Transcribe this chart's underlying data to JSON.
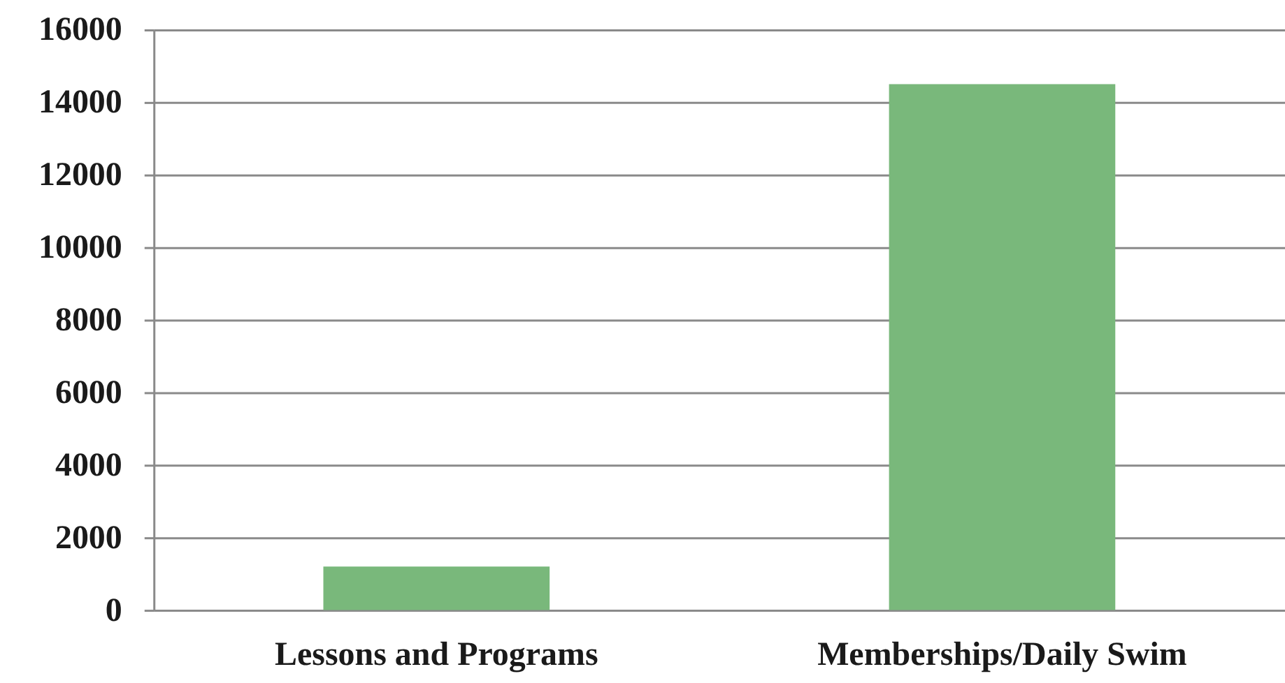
{
  "chart_data": {
    "type": "bar",
    "categories": [
      "Lessons and Programs",
      "Memberships/Daily Swim"
    ],
    "values": [
      1200,
      14500
    ],
    "color": "#79b87b",
    "ylim": [
      0,
      16000
    ],
    "yticks": [
      0,
      2000,
      4000,
      6000,
      8000,
      10000,
      12000,
      14000,
      16000
    ],
    "grid": "y"
  }
}
